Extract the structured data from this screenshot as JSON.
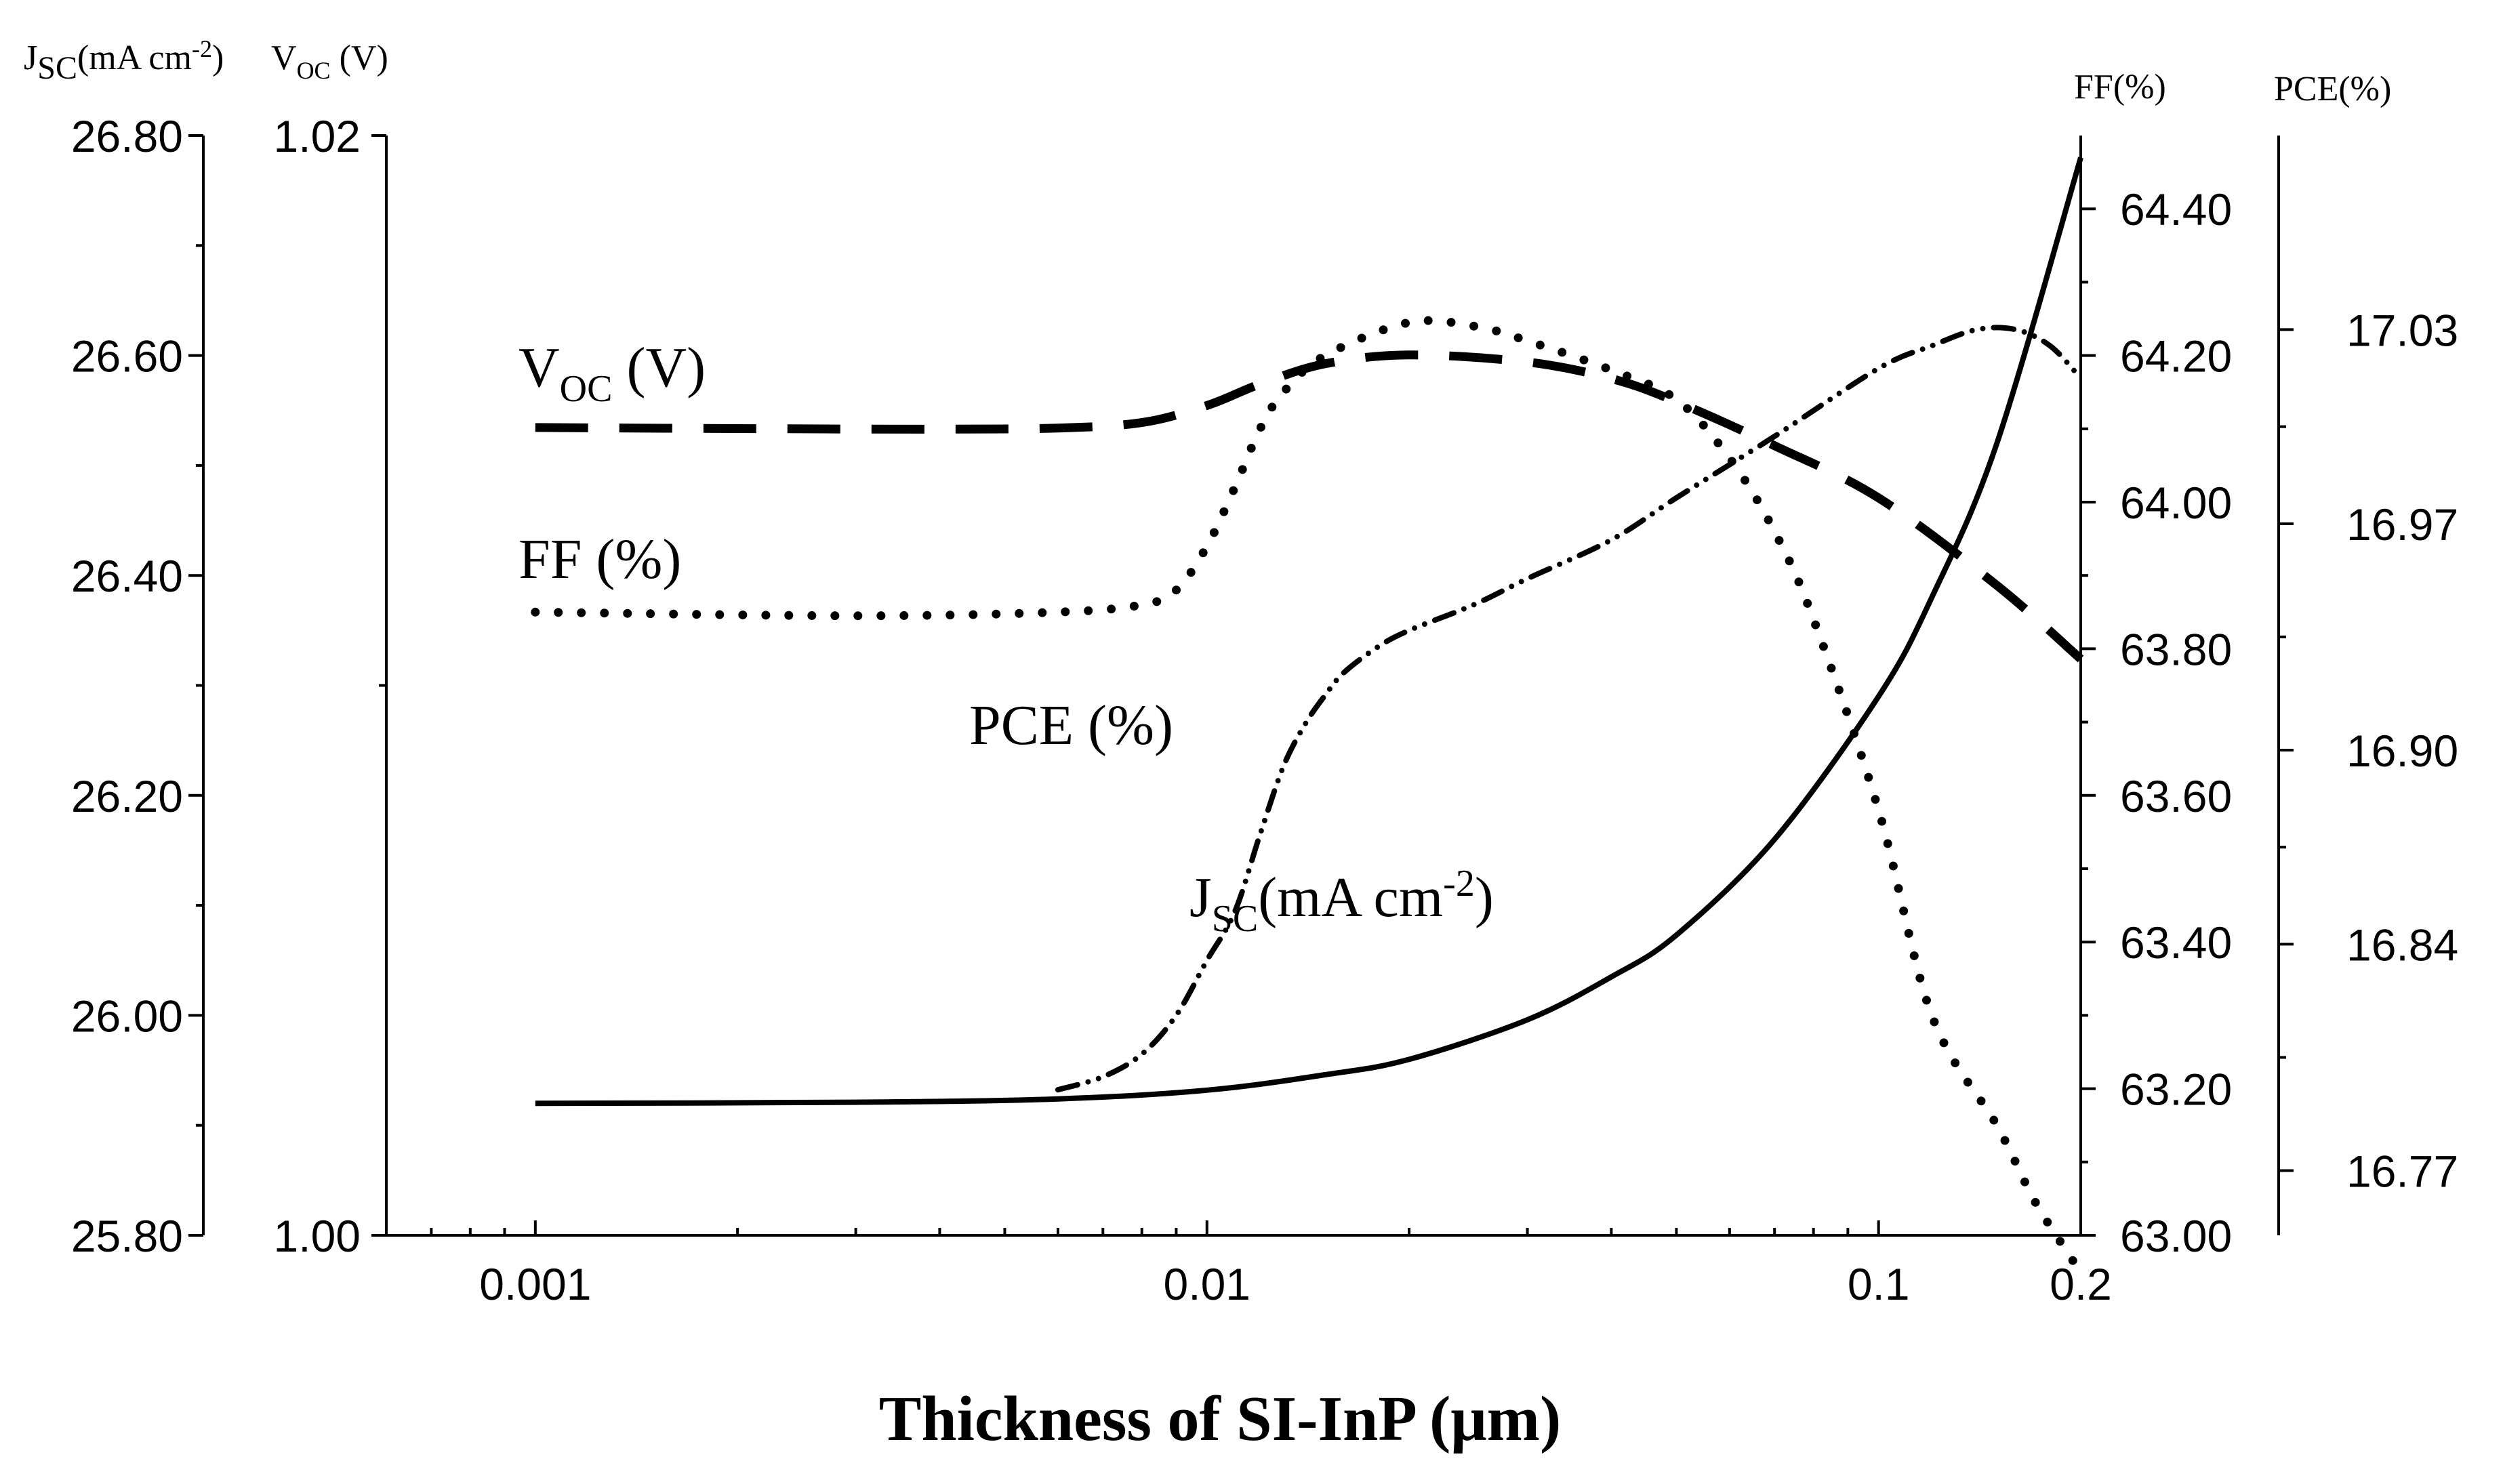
{
  "chart_data": {
    "type": "line",
    "x_scale": "log",
    "xlim": [
      0.0006,
      0.2
    ],
    "x_ticks": [
      0.001,
      0.01,
      0.1,
      0.2
    ],
    "x_tick_labels": [
      "0.001",
      "0.01",
      "0.1",
      "0.2"
    ],
    "xlabel": "Thickness of SI-InP (μm)",
    "axes": {
      "jsc": {
        "head_main": "J",
        "head_sub": "SC",
        "head_rest": "(mA cm",
        "head_sup": "-2",
        "head_close": ")",
        "ylim": [
          25.8,
          26.8
        ],
        "ticks": [
          "25.80",
          "26.00",
          "26.20",
          "26.40",
          "26.60",
          "26.80"
        ],
        "placement": "left-outer"
      },
      "voc": {
        "head_main": "V",
        "head_sub": "OC",
        "head_rest": " (V)",
        "ylim": [
          1.0,
          1.02
        ],
        "ticks": [
          "1.00",
          "1.02"
        ],
        "placement": "left-inner"
      },
      "ff": {
        "head": "FF(%)",
        "ylim": [
          63.0,
          64.5
        ],
        "ticks": [
          "63.00",
          "63.20",
          "63.40",
          "63.60",
          "63.80",
          "64.00",
          "64.20",
          "64.40"
        ],
        "placement": "right-inner"
      },
      "pce": {
        "head": "PCE(%)",
        "ylim": [
          16.75,
          17.09
        ],
        "ticks": [
          "16.77",
          "16.84",
          "16.90",
          "16.97",
          "17.03"
        ],
        "placement": "right-outer"
      }
    },
    "series": [
      {
        "name": "Voc",
        "axis": "voc",
        "style": "dash",
        "label_main": "V",
        "label_sub": "OC",
        "label_rest": " (V)",
        "x": [
          0.001,
          0.002,
          0.004,
          0.006,
          0.008,
          0.01,
          0.012,
          0.015,
          0.02,
          0.03,
          0.04,
          0.05,
          0.07,
          0.1,
          0.15,
          0.2
        ],
        "y": [
          1.01469,
          1.01467,
          1.01466,
          1.01468,
          1.01478,
          1.01509,
          1.01548,
          1.01585,
          1.01601,
          1.01588,
          1.01558,
          1.01516,
          1.01436,
          1.01341,
          1.01182,
          1.01048
        ]
      },
      {
        "name": "FF",
        "axis": "ff",
        "style": "dot",
        "label": "FF (%)",
        "x": [
          0.001,
          0.003,
          0.006,
          0.008,
          0.009,
          0.01,
          0.011,
          0.012,
          0.013,
          0.015,
          0.02,
          0.025,
          0.03,
          0.04,
          0.05,
          0.06,
          0.07,
          0.08,
          0.1,
          0.12,
          0.15,
          0.17,
          0.19,
          0.2
        ],
        "y": [
          63.85,
          63.845,
          63.85,
          63.86,
          63.88,
          63.94,
          64.02,
          64.1,
          64.15,
          64.2,
          64.245,
          64.24,
          64.22,
          64.18,
          64.14,
          64.06,
          63.96,
          63.84,
          63.58,
          63.3,
          63.15,
          63.05,
          62.98,
          62.95
        ]
      },
      {
        "name": "PCE",
        "axis": "pce",
        "style": "dashdotdot",
        "label": "PCE (%)",
        "x": [
          0.006,
          0.007,
          0.008,
          0.009,
          0.01,
          0.011,
          0.012,
          0.013,
          0.014,
          0.015,
          0.016,
          0.018,
          0.02,
          0.025,
          0.03,
          0.04,
          0.05,
          0.07,
          0.1,
          0.12,
          0.14,
          0.16,
          0.18,
          0.2
        ],
        "y": [
          16.795,
          16.799,
          16.806,
          16.818,
          16.835,
          16.85,
          16.874,
          16.895,
          16.908,
          16.917,
          16.924,
          16.932,
          16.937,
          16.945,
          16.953,
          16.965,
          16.978,
          16.997,
          17.018,
          17.025,
          17.03,
          17.03,
          17.025,
          17.015
        ]
      },
      {
        "name": "Jsc",
        "axis": "jsc",
        "style": "solid",
        "label_main": "J",
        "label_sub": "SC",
        "label_rest": "(mA cm",
        "label_sup": "-2",
        "label_close": ")",
        "x": [
          0.001,
          0.003,
          0.006,
          0.01,
          0.015,
          0.02,
          0.03,
          0.04,
          0.05,
          0.07,
          0.1,
          0.12,
          0.15,
          0.2
        ],
        "y": [
          25.92,
          25.921,
          25.924,
          25.932,
          25.946,
          25.96,
          25.996,
          26.035,
          26.073,
          26.16,
          26.29,
          26.38,
          26.52,
          26.78
        ]
      }
    ]
  }
}
